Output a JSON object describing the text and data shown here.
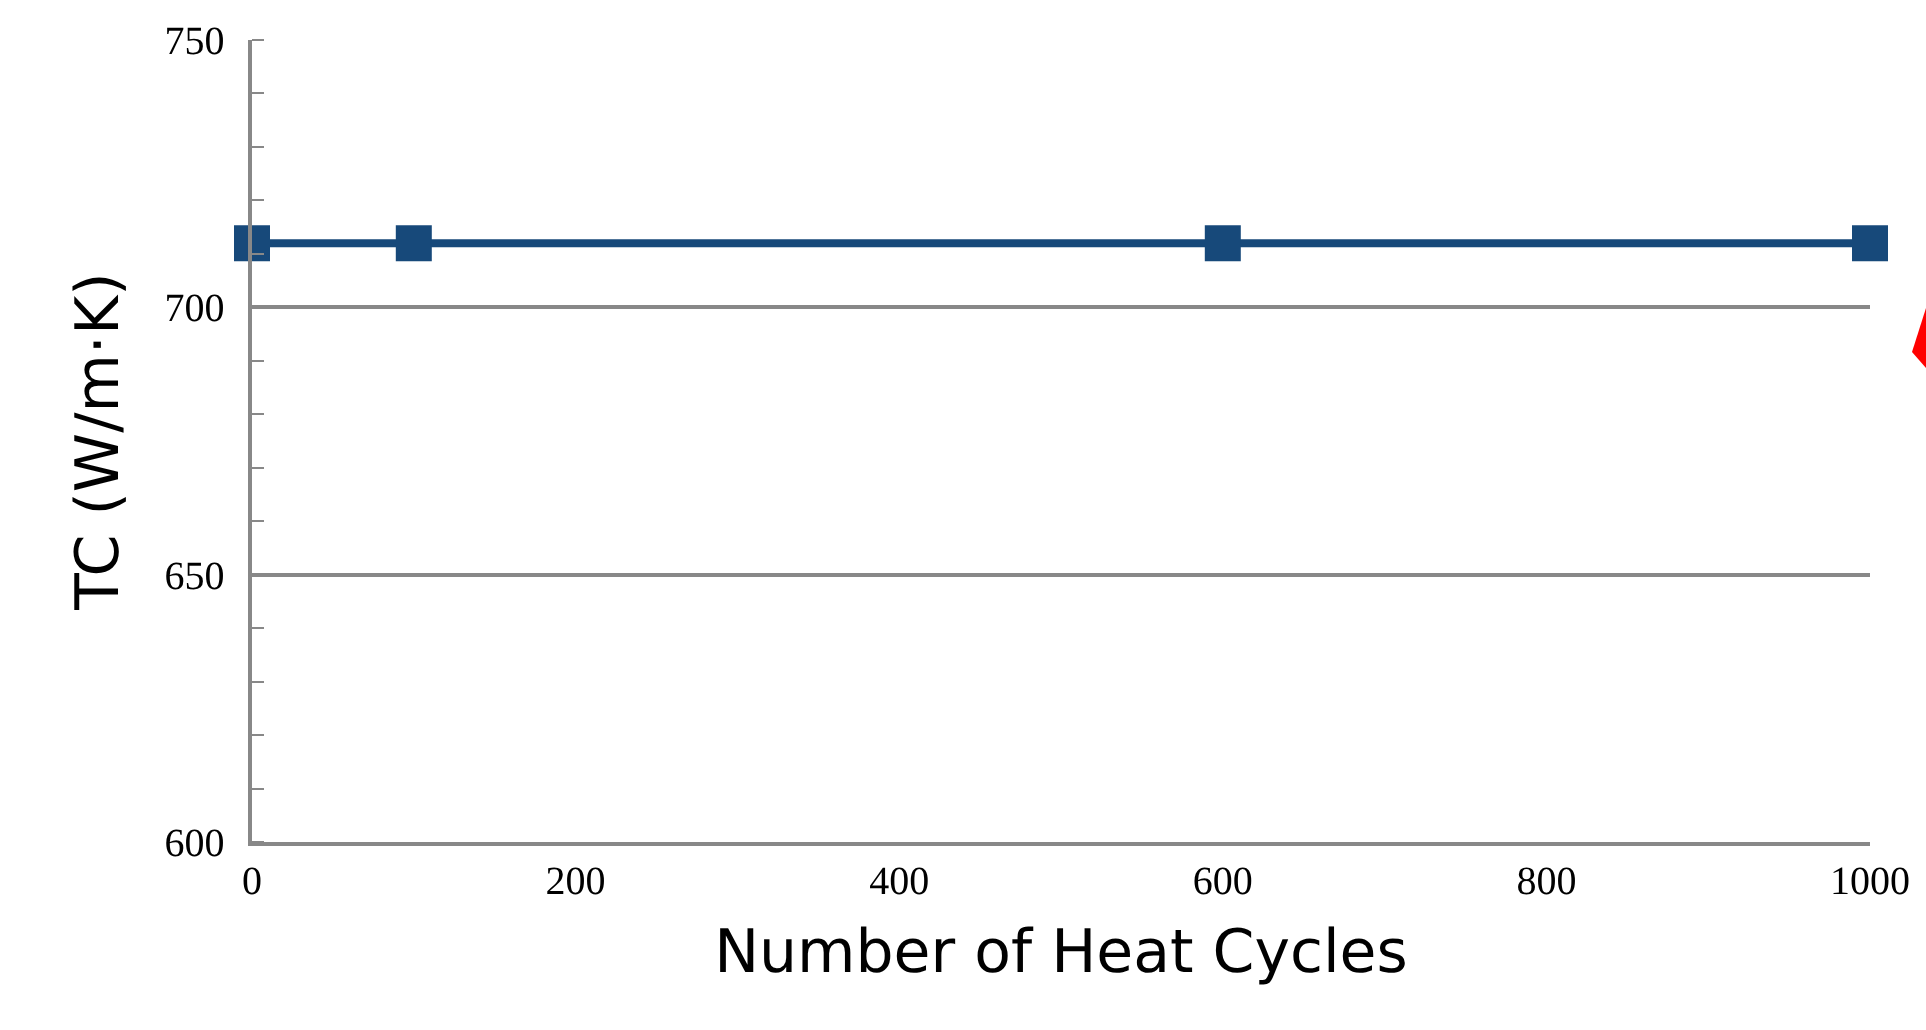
{
  "chart_data": {
    "type": "line",
    "xlabel": "Number of Heat Cycles",
    "ylabel": "TC (W/m·K)",
    "x": [
      0,
      100,
      600,
      1000
    ],
    "series": [
      {
        "color": "#17497a",
        "values": [
          712,
          712,
          712,
          712
        ]
      }
    ],
    "xlim": [
      0,
      1000
    ],
    "xticks": [
      0,
      200,
      400,
      600,
      800,
      1000
    ],
    "ylim": [
      600,
      750
    ],
    "yticks": [
      600,
      650,
      700,
      750
    ],
    "grid": "y",
    "marker": "square",
    "line_style": "solid"
  }
}
